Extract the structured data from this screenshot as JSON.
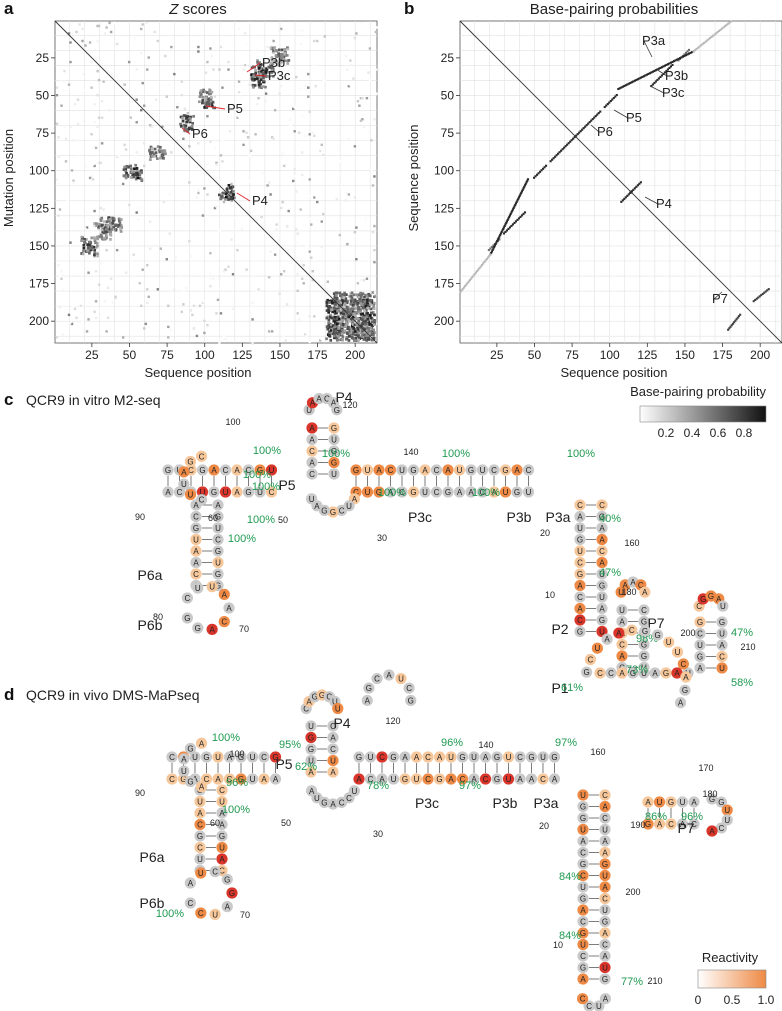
{
  "panels": {
    "a": {
      "letter": "a",
      "title_italic": "Z",
      "title_rest": " scores",
      "xlabel": "Sequence position",
      "ylabel": "Mutation position",
      "annotations": [
        "P3b",
        "P3c",
        "P5",
        "P6",
        "P4"
      ],
      "annotation_color": "#e3242b"
    },
    "b": {
      "letter": "b",
      "title": "Base-pairing probabilities",
      "xlabel": "Sequence position",
      "ylabel": "Sequence position",
      "annotations": [
        "P3a",
        "P3b",
        "P3c",
        "P5",
        "P6",
        "P4",
        "P7"
      ]
    },
    "c": {
      "letter": "c",
      "title": "QCR9 in vitro M2-seq",
      "helices": [
        "P5",
        "P4",
        "P6a",
        "P6b",
        "P3c",
        "P3b",
        "P3a",
        "P2",
        "P1",
        "P7"
      ],
      "percents": [
        "100%",
        "100%",
        "100%",
        "100%",
        "100%",
        "100%",
        "100%",
        "100%",
        "100%",
        "100%",
        "40%",
        "47%",
        "98%",
        "73%",
        "61%",
        "47%",
        "58%"
      ],
      "numbers": [
        "100",
        "120",
        "140",
        "90",
        "60",
        "50",
        "30",
        "20",
        "160",
        "10",
        "180",
        "80",
        "70",
        "200",
        "210"
      ]
    },
    "d": {
      "letter": "d",
      "title": "QCR9 in vivo DMS-MaPseq",
      "helices": [
        "P5",
        "P4",
        "P6a",
        "P6b",
        "P3c",
        "P3b",
        "P3a",
        "P7"
      ],
      "percents": [
        "100%",
        "95%",
        "62%",
        "96%",
        "97%",
        "96%",
        "78%",
        "97%",
        "100%",
        "100%",
        "86%",
        "96%",
        "84%",
        "84%",
        "77%"
      ],
      "numbers": [
        "120",
        "160",
        "140",
        "100",
        "170",
        "180",
        "90",
        "60",
        "50",
        "30",
        "20",
        "190",
        "200",
        "70",
        "10",
        "210"
      ]
    }
  },
  "colorbar_bpp": {
    "title": "Base-pairing probability",
    "ticks": [
      "0.2",
      "0.4",
      "0.6",
      "0.8"
    ],
    "colors": [
      "#ffffff",
      "#111111"
    ]
  },
  "colorbar_reactivity": {
    "title": "Reactivity",
    "ticks": [
      "0",
      "0.5",
      "1.0"
    ],
    "colors": [
      "#ffffff",
      "#ee8a45"
    ]
  },
  "chart_data": [
    {
      "type": "heatmap",
      "panel": "a",
      "title": "Z scores",
      "xlabel": "Sequence position",
      "ylabel": "Mutation position",
      "xlim": [
        1,
        214
      ],
      "ylim": [
        1,
        214
      ],
      "x_ticks": [
        25,
        50,
        75,
        100,
        125,
        150,
        175,
        200
      ],
      "y_ticks": [
        25,
        50,
        75,
        100,
        125,
        150,
        175,
        200
      ],
      "grid": true,
      "diagonal": true,
      "clusters": [
        {
          "label": "P3b",
          "x": [
            134,
            145
          ],
          "y": [
            25,
            37
          ]
        },
        {
          "label": "P3c",
          "x": [
            130,
            140
          ],
          "y": [
            30,
            45
          ]
        },
        {
          "label": "P5",
          "x": [
            99,
            106
          ],
          "y": [
            51,
            58
          ]
        },
        {
          "label": "P6",
          "x": [
            83,
            92
          ],
          "y": [
            62,
            73
          ]
        },
        {
          "label": "P4",
          "x": [
            113,
            120
          ],
          "y": [
            108,
            118
          ]
        },
        {
          "label": "",
          "x": [
            45,
            55
          ],
          "y": [
            95,
            105
          ]
        },
        {
          "label": "",
          "x": [
            17,
            28
          ],
          "y": [
            143,
            155
          ]
        },
        {
          "label": "",
          "x": [
            180,
            212
          ],
          "y": [
            185,
            212
          ]
        }
      ]
    },
    {
      "type": "heatmap",
      "panel": "b",
      "title": "Base-pairing probabilities",
      "xlabel": "Sequence position",
      "ylabel": "Sequence position",
      "xlim": [
        1,
        214
      ],
      "ylim": [
        1,
        214
      ],
      "x_ticks": [
        25,
        50,
        75,
        100,
        125,
        150,
        175,
        200
      ],
      "y_ticks": [
        25,
        50,
        75,
        100,
        125,
        150,
        175,
        200
      ],
      "grid": true,
      "diagonal": true,
      "helices": [
        {
          "label": "P3a",
          "i": [
            145,
            152
          ],
          "j": [
            19,
            26
          ],
          "p": 0.6
        },
        {
          "label": "P3b",
          "i": [
            134,
            141
          ],
          "j": [
            29,
            36
          ],
          "p": 0.9
        },
        {
          "label": "P3c",
          "i": [
            127,
            133
          ],
          "j": [
            37,
            43
          ],
          "p": 0.9
        },
        {
          "label": "P5",
          "i": [
            96,
            104
          ],
          "j": [
            49,
            57
          ],
          "p": 0.9
        },
        {
          "label": "P6",
          "i": [
            77,
            93
          ],
          "j": [
            60,
            76
          ],
          "p": 0.9
        },
        {
          "label": "P4",
          "i": [
            113,
            120
          ],
          "j": [
            107,
            114
          ],
          "p": 0.9
        },
        {
          "label": "P7",
          "i": [
            195,
            205
          ],
          "j": [
            178,
            186
          ],
          "p": 0.8
        },
        {
          "label": "",
          "i": [
            20,
            45
          ],
          "j": [
            105,
            155
          ],
          "p": 0.9
        },
        {
          "label": "",
          "i": [
            0,
            20
          ],
          "j": [
            155,
            180
          ],
          "p": 0.3
        }
      ]
    }
  ]
}
